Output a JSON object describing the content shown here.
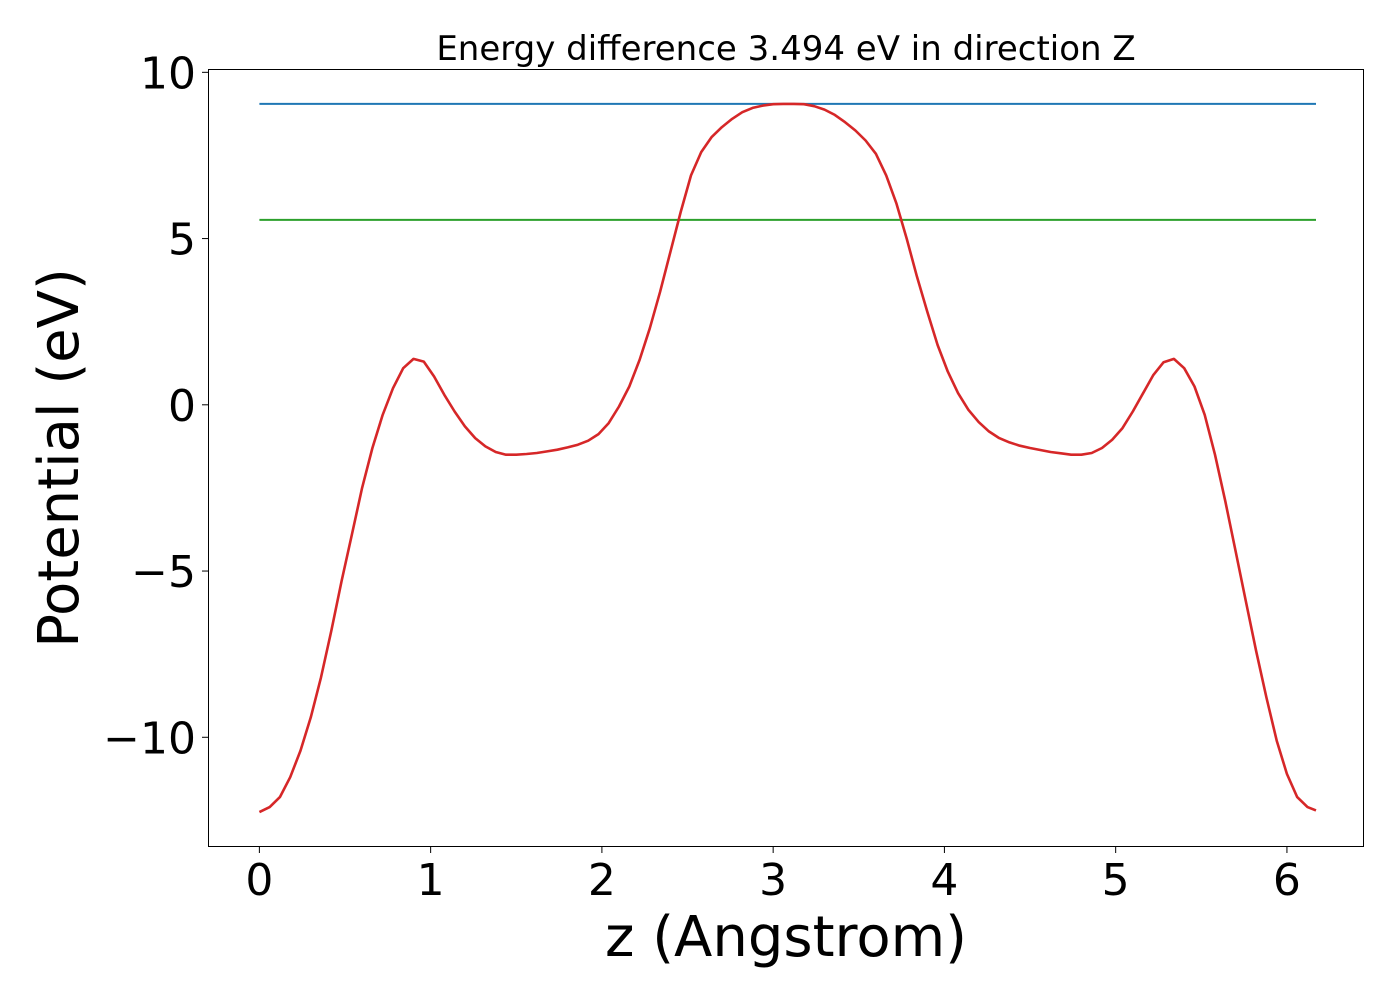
{
  "chart_data": {
    "type": "line",
    "title": "Energy difference 3.494 eV in direction Z",
    "xlabel": "z (Angstrom)",
    "ylabel": "Potential (eV)",
    "xlim": [
      -0.3,
      6.45
    ],
    "ylim": [
      -13.3,
      10.1
    ],
    "xticks": [
      0,
      1,
      2,
      3,
      4,
      5,
      6
    ],
    "xtick_labels": [
      "0",
      "1",
      "2",
      "3",
      "4",
      "5",
      "6"
    ],
    "yticks": [
      10,
      5,
      0,
      -5,
      -10
    ],
    "ytick_labels": [
      "10",
      "5",
      "0",
      "−5",
      "−10"
    ],
    "grid": false,
    "series": [
      {
        "color": "#1f77b4",
        "x": [
          0,
          6.17
        ],
        "y": [
          9.05,
          9.05
        ]
      },
      {
        "color": "#2ca02c",
        "x": [
          0,
          6.17
        ],
        "y": [
          5.56,
          5.56
        ]
      },
      {
        "color": "#d62728",
        "x": [
          0,
          0.06,
          0.12,
          0.18,
          0.24,
          0.3,
          0.36,
          0.42,
          0.48,
          0.54,
          0.6,
          0.66,
          0.72,
          0.78,
          0.84,
          0.9,
          0.96,
          1.02,
          1.08,
          1.14,
          1.2,
          1.26,
          1.32,
          1.38,
          1.44,
          1.5,
          1.56,
          1.62,
          1.68,
          1.74,
          1.8,
          1.86,
          1.92,
          1.98,
          2.04,
          2.1,
          2.16,
          2.22,
          2.28,
          2.34,
          2.4,
          2.46,
          2.52,
          2.58,
          2.64,
          2.7,
          2.76,
          2.82,
          2.88,
          2.94,
          3.0,
          3.06,
          3.12,
          3.18,
          3.24,
          3.3,
          3.36,
          3.42,
          3.48,
          3.54,
          3.6,
          3.66,
          3.72,
          3.78,
          3.84,
          3.9,
          3.96,
          4.02,
          4.08,
          4.14,
          4.2,
          4.26,
          4.32,
          4.38,
          4.44,
          4.5,
          4.56,
          4.62,
          4.68,
          4.74,
          4.8,
          4.86,
          4.92,
          4.98,
          5.04,
          5.1,
          5.16,
          5.22,
          5.28,
          5.34,
          5.4,
          5.46,
          5.52,
          5.58,
          5.64,
          5.7,
          5.76,
          5.82,
          5.88,
          5.94,
          6.0,
          6.06,
          6.12,
          6.17
        ],
        "y": [
          -12.25,
          -12.1,
          -11.8,
          -11.2,
          -10.4,
          -9.4,
          -8.2,
          -6.8,
          -5.3,
          -3.9,
          -2.5,
          -1.3,
          -0.3,
          0.5,
          1.1,
          1.38,
          1.3,
          0.85,
          0.3,
          -0.2,
          -0.65,
          -1.0,
          -1.25,
          -1.42,
          -1.5,
          -1.5,
          -1.48,
          -1.45,
          -1.4,
          -1.35,
          -1.28,
          -1.2,
          -1.08,
          -0.88,
          -0.55,
          -0.05,
          0.55,
          1.35,
          2.3,
          3.4,
          4.6,
          5.8,
          6.9,
          7.6,
          8.05,
          8.35,
          8.6,
          8.8,
          8.93,
          9.0,
          9.04,
          9.05,
          9.05,
          9.04,
          8.98,
          8.88,
          8.72,
          8.5,
          8.25,
          7.95,
          7.55,
          6.9,
          6.05,
          5.0,
          3.85,
          2.8,
          1.8,
          1.0,
          0.35,
          -0.15,
          -0.52,
          -0.8,
          -1.0,
          -1.13,
          -1.23,
          -1.3,
          -1.36,
          -1.42,
          -1.46,
          -1.5,
          -1.5,
          -1.45,
          -1.3,
          -1.05,
          -0.7,
          -0.2,
          0.35,
          0.9,
          1.28,
          1.38,
          1.1,
          0.55,
          -0.3,
          -1.5,
          -2.9,
          -4.4,
          -5.9,
          -7.4,
          -8.8,
          -10.1,
          -11.1,
          -11.8,
          -12.1,
          -12.2
        ]
      }
    ]
  }
}
